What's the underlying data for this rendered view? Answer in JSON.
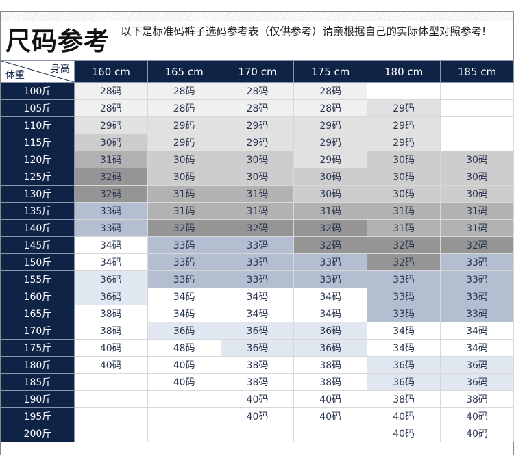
{
  "header": {
    "title": "尺码参考",
    "subtitle": "以下是标准码裤子选码参考表（仅供参考）请亲根据自己的实际体型对照参考!"
  },
  "table": {
    "corner_height_label": "身高",
    "corner_weight_label": "体重",
    "heights": [
      "160 cm",
      "165 cm",
      "170 cm",
      "175 cm",
      "180 cm",
      "185 cm"
    ],
    "rows": [
      {
        "weight": "100斤",
        "sizes": [
          "28码",
          "28码",
          "28码",
          "28码",
          "",
          ""
        ]
      },
      {
        "weight": "105斤",
        "sizes": [
          "28码",
          "28码",
          "28码",
          "28码",
          "29码",
          ""
        ]
      },
      {
        "weight": "110斤",
        "sizes": [
          "29码",
          "29码",
          "29码",
          "29码",
          "29码",
          ""
        ]
      },
      {
        "weight": "115斤",
        "sizes": [
          "30码",
          "29码",
          "29码",
          "29码",
          "29码",
          ""
        ]
      },
      {
        "weight": "120斤",
        "sizes": [
          "31码",
          "30码",
          "30码",
          "29码",
          "30码",
          "30码"
        ]
      },
      {
        "weight": "125斤",
        "sizes": [
          "32码",
          "30码",
          "30码",
          "30码",
          "30码",
          "30码"
        ]
      },
      {
        "weight": "130斤",
        "sizes": [
          "32码",
          "31码",
          "31码",
          "30码",
          "30码",
          "30码"
        ]
      },
      {
        "weight": "135斤",
        "sizes": [
          "33码",
          "31码",
          "31码",
          "31码",
          "31码",
          "31码"
        ]
      },
      {
        "weight": "140斤",
        "sizes": [
          "33码",
          "32码",
          "32码",
          "32码",
          "31码",
          "31码"
        ]
      },
      {
        "weight": "145斤",
        "sizes": [
          "34码",
          "33码",
          "33码",
          "32码",
          "32码",
          "32码"
        ]
      },
      {
        "weight": "150斤",
        "sizes": [
          "34码",
          "33码",
          "33码",
          "33码",
          "32码",
          "33码"
        ]
      },
      {
        "weight": "155斤",
        "sizes": [
          "36码",
          "33码",
          "33码",
          "33码",
          "33码",
          "33码"
        ]
      },
      {
        "weight": "160斤",
        "sizes": [
          "36码",
          "34码",
          "34码",
          "34码",
          "33码",
          "33码"
        ]
      },
      {
        "weight": "165斤",
        "sizes": [
          "38码",
          "34码",
          "34码",
          "34码",
          "33码",
          "33码"
        ]
      },
      {
        "weight": "170斤",
        "sizes": [
          "38码",
          "36码",
          "36码",
          "36码",
          "34码",
          "34码"
        ]
      },
      {
        "weight": "175斤",
        "sizes": [
          "40码",
          "48码",
          "36码",
          "36码",
          "34码",
          "34码"
        ]
      },
      {
        "weight": "180斤",
        "sizes": [
          "40码",
          "40码",
          "38码",
          "38码",
          "36码",
          "36码"
        ]
      },
      {
        "weight": "185斤",
        "sizes": [
          "",
          "40码",
          "38码",
          "38码",
          "36码",
          "36码"
        ]
      },
      {
        "weight": "190斤",
        "sizes": [
          "",
          "",
          "40码",
          "40码",
          "38码",
          "38码"
        ]
      },
      {
        "weight": "195斤",
        "sizes": [
          "",
          "",
          "40码",
          "40码",
          "40码",
          "40码"
        ]
      },
      {
        "weight": "200斤",
        "sizes": [
          "",
          "",
          "",
          "",
          "40码",
          "40码"
        ]
      }
    ]
  }
}
